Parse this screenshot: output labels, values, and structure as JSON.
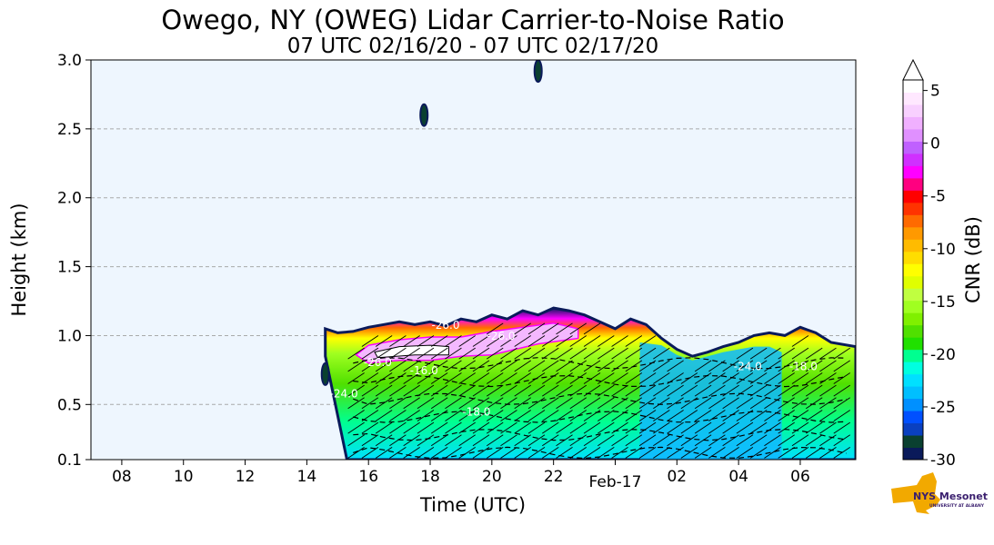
{
  "chart_data": {
    "type": "heatmap",
    "title": "Owego, NY (OWEG) Lidar Carrier-to-Noise Ratio",
    "subtitle": "07 UTC 02/16/20 - 07 UTC 02/17/20",
    "xlabel": "Time (UTC)",
    "ylabel": "Height (km)",
    "x_range_hours": [
      7,
      31.8
    ],
    "ylim": [
      0.1,
      3.0
    ],
    "x_ticks": [
      {
        "hour": 8,
        "label": "08"
      },
      {
        "hour": 10,
        "label": "10"
      },
      {
        "hour": 12,
        "label": "12"
      },
      {
        "hour": 14,
        "label": "14"
      },
      {
        "hour": 16,
        "label": "16"
      },
      {
        "hour": 18,
        "label": "18"
      },
      {
        "hour": 20,
        "label": "20"
      },
      {
        "hour": 22,
        "label": "22"
      },
      {
        "hour": 24,
        "label": "Feb-17"
      },
      {
        "hour": 26,
        "label": "02"
      },
      {
        "hour": 28,
        "label": "04"
      },
      {
        "hour": 30,
        "label": "06"
      }
    ],
    "y_ticks": [
      {
        "value": 0.1,
        "label": "0.1"
      },
      {
        "value": 0.5,
        "label": "0.5"
      },
      {
        "value": 1.0,
        "label": "1.0"
      },
      {
        "value": 1.5,
        "label": "1.5"
      },
      {
        "value": 2.0,
        "label": "2.0"
      },
      {
        "value": 2.5,
        "label": "2.5"
      },
      {
        "value": 3.0,
        "label": "3.0"
      }
    ],
    "grid": "horizontal dashed",
    "background_color": "#eef6fe",
    "colorbar": {
      "label": "CNR (dB)",
      "range": [
        -30,
        6
      ],
      "extend": "max",
      "ticks": [
        {
          "value": 5,
          "label": "5"
        },
        {
          "value": 0,
          "label": "0"
        },
        {
          "value": -5,
          "label": "-5"
        },
        {
          "value": -10,
          "label": "-10"
        },
        {
          "value": -15,
          "label": "-15"
        },
        {
          "value": -20,
          "label": "-20"
        },
        {
          "value": -25,
          "label": "-25"
        },
        {
          "value": -30,
          "label": "-30"
        }
      ],
      "colors": [
        "#0a1a5a",
        "#0a4030",
        "#0a40c0",
        "#0050ff",
        "#0090ff",
        "#00bfff",
        "#00e0ff",
        "#00ffe0",
        "#00ff90",
        "#20e000",
        "#50e000",
        "#80f000",
        "#a0ff20",
        "#c0ff40",
        "#e0ff00",
        "#ffff00",
        "#ffdd00",
        "#ffbb00",
        "#ff9900",
        "#ff6a00",
        "#ff3300",
        "#ff0000",
        "#ff0080",
        "#ff00ff",
        "#d030ff",
        "#c060ff",
        "#e090ff",
        "#f0b0ff",
        "#f8d0ff",
        "#ffe8ff",
        "#ffffff"
      ]
    },
    "cloud_top_km": [
      {
        "hour": 14.6,
        "top": 1.05
      },
      {
        "hour": 15.0,
        "top": 1.02
      },
      {
        "hour": 15.5,
        "top": 1.03
      },
      {
        "hour": 16.0,
        "top": 1.06
      },
      {
        "hour": 16.5,
        "top": 1.08
      },
      {
        "hour": 17.0,
        "top": 1.1
      },
      {
        "hour": 17.5,
        "top": 1.08
      },
      {
        "hour": 18.0,
        "top": 1.1
      },
      {
        "hour": 18.5,
        "top": 1.07
      },
      {
        "hour": 19.0,
        "top": 1.12
      },
      {
        "hour": 19.5,
        "top": 1.1
      },
      {
        "hour": 20.0,
        "top": 1.15
      },
      {
        "hour": 20.5,
        "top": 1.12
      },
      {
        "hour": 21.0,
        "top": 1.18
      },
      {
        "hour": 21.5,
        "top": 1.15
      },
      {
        "hour": 22.0,
        "top": 1.2
      },
      {
        "hour": 22.5,
        "top": 1.18
      },
      {
        "hour": 23.0,
        "top": 1.15
      },
      {
        "hour": 23.5,
        "top": 1.1
      },
      {
        "hour": 24.0,
        "top": 1.05
      },
      {
        "hour": 24.5,
        "top": 1.12
      },
      {
        "hour": 25.0,
        "top": 1.08
      },
      {
        "hour": 25.5,
        "top": 0.98
      },
      {
        "hour": 26.0,
        "top": 0.9
      },
      {
        "hour": 26.5,
        "top": 0.85
      },
      {
        "hour": 27.0,
        "top": 0.88
      },
      {
        "hour": 27.5,
        "top": 0.92
      },
      {
        "hour": 28.0,
        "top": 0.95
      },
      {
        "hour": 28.5,
        "top": 1.0
      },
      {
        "hour": 29.0,
        "top": 1.02
      },
      {
        "hour": 29.5,
        "top": 1.0
      },
      {
        "hour": 30.0,
        "top": 1.06
      },
      {
        "hour": 30.5,
        "top": 1.02
      },
      {
        "hour": 31.0,
        "top": 0.95
      },
      {
        "hour": 31.8,
        "top": 0.92
      }
    ],
    "cloud_base_start_hour": 15.3,
    "isolated_echoes": [
      {
        "hour": 14.6,
        "height": 0.72
      },
      {
        "hour": 17.8,
        "height": 2.6
      },
      {
        "hour": 21.5,
        "height": 2.92
      }
    ],
    "contour_labels": [
      {
        "text": "-26.0",
        "hour": 18.5,
        "height": 1.05
      },
      {
        "text": "-26.0",
        "hour": 20.3,
        "height": 0.97
      },
      {
        "text": "-26.0",
        "hour": 16.3,
        "height": 0.78
      },
      {
        "text": "-18.0",
        "hour": 19.5,
        "height": 0.42
      },
      {
        "text": "-24.0",
        "hour": 28.3,
        "height": 0.75
      },
      {
        "text": "-18.0",
        "hour": 30.1,
        "height": 0.75
      },
      {
        "text": "-16.0",
        "hour": 17.8,
        "height": 0.72
      },
      {
        "text": "-24.0",
        "hour": 15.2,
        "height": 0.55
      }
    ]
  },
  "logo": {
    "text": "NYS Mesonet",
    "subtext": "UNIVERSITY AT ALBANY"
  }
}
